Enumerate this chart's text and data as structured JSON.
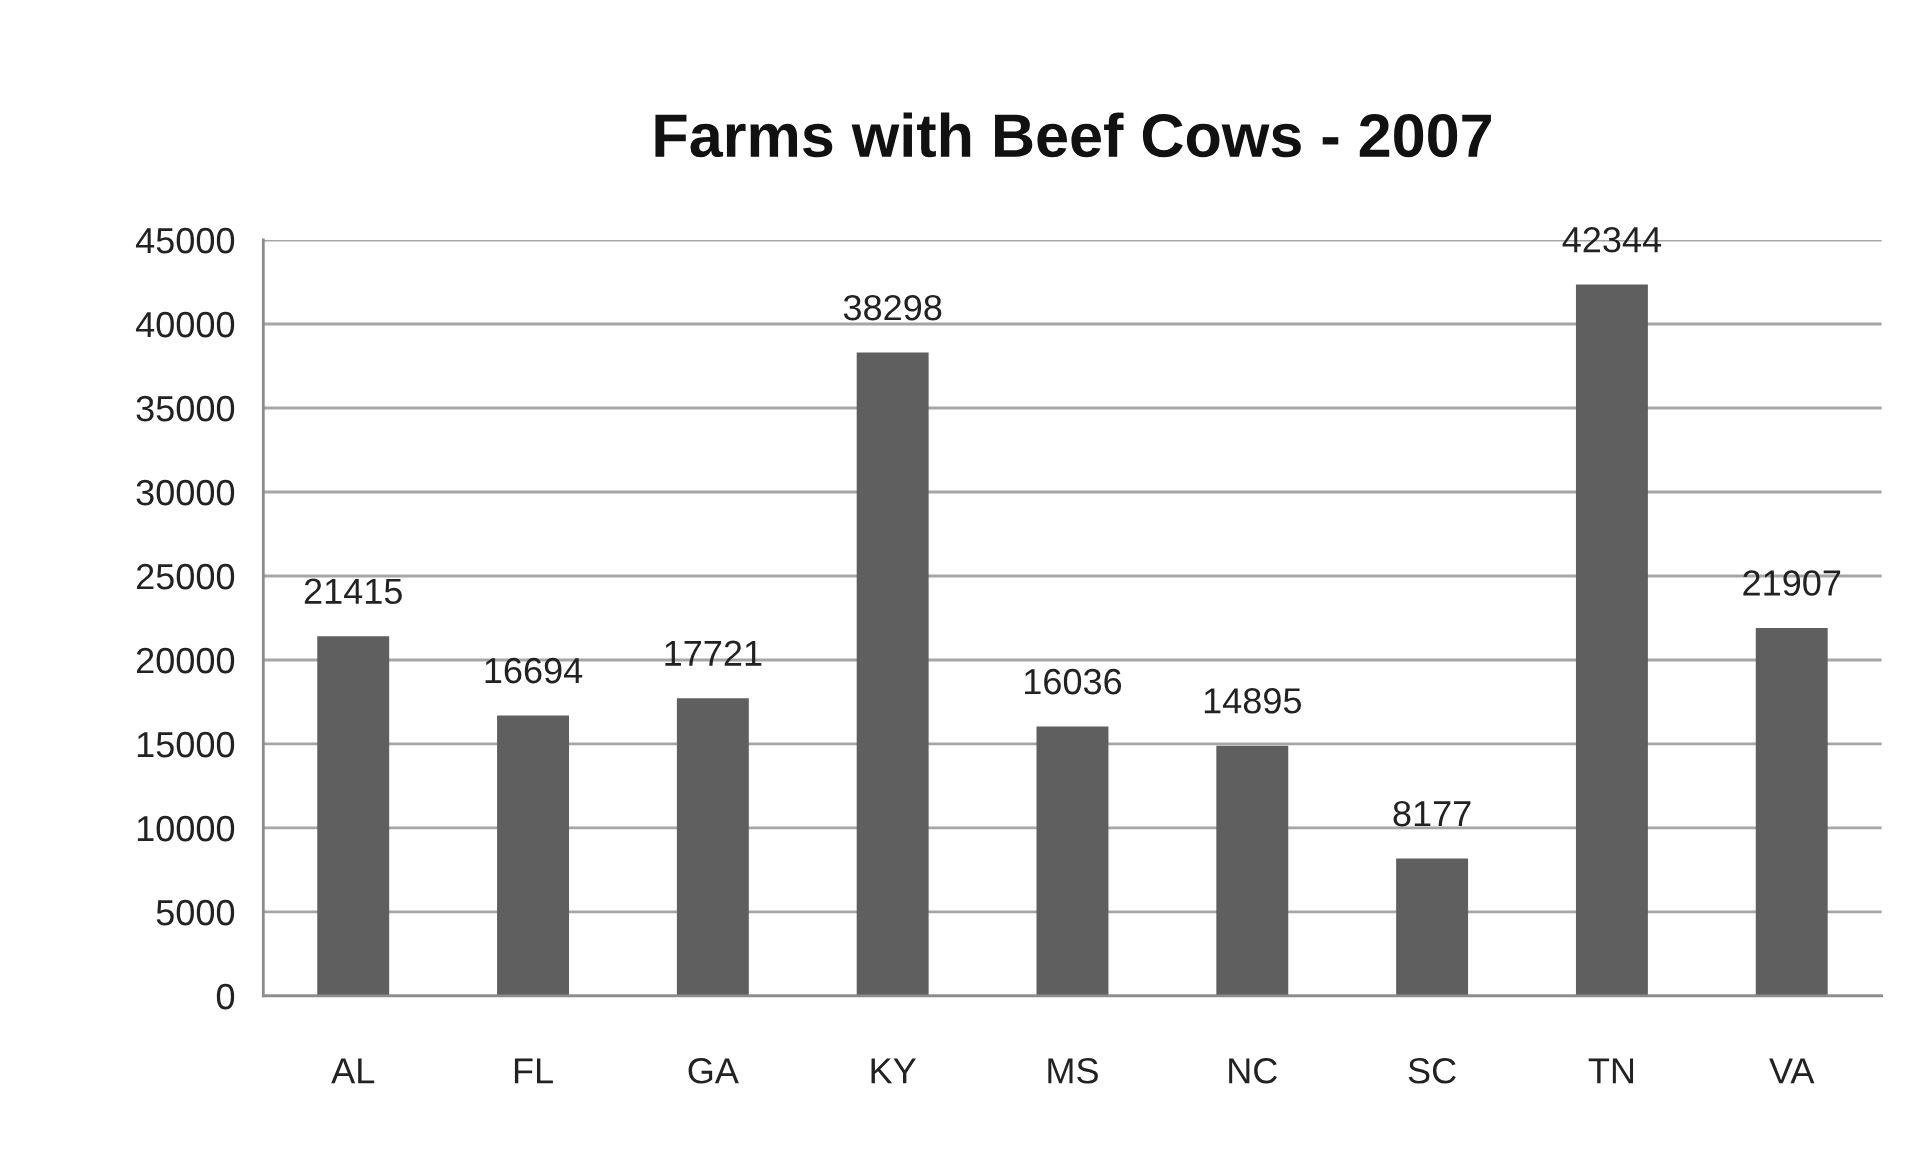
{
  "chart_data": {
    "type": "bar",
    "title": "Farms with Beef Cows - 2007",
    "categories": [
      "AL",
      "FL",
      "GA",
      "KY",
      "MS",
      "NC",
      "SC",
      "TN",
      "VA"
    ],
    "values": [
      21415,
      16694,
      17721,
      38298,
      16036,
      14895,
      8177,
      42344,
      21907
    ],
    "color": "#5f5f5f",
    "data_labels": true,
    "ylim": [
      0,
      45000
    ],
    "yticks": [
      0,
      5000,
      10000,
      15000,
      20000,
      25000,
      30000,
      35000,
      40000,
      45000
    ],
    "grid": "y"
  }
}
